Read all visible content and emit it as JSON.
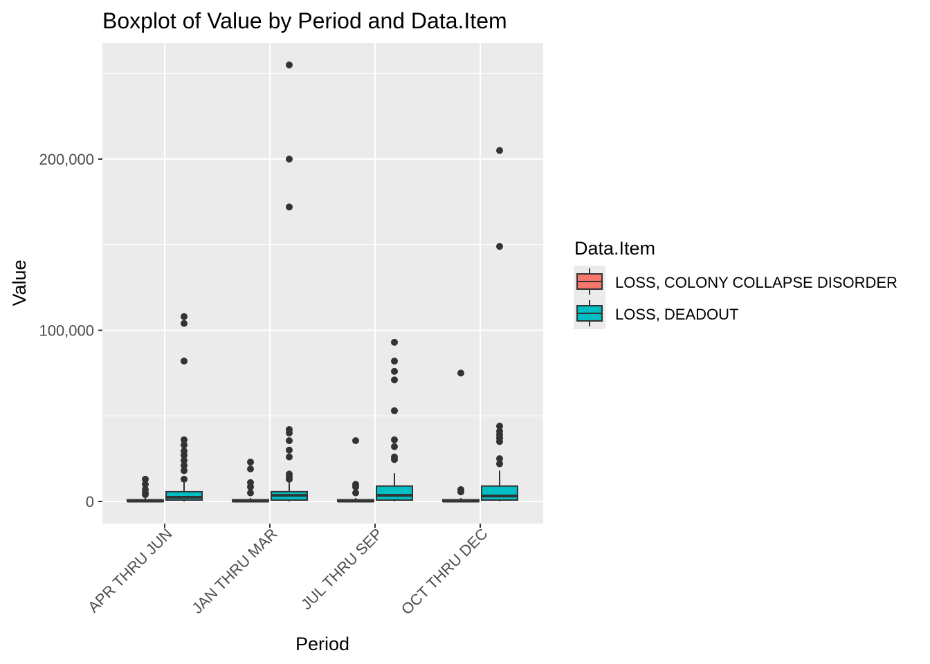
{
  "chart_data": {
    "type": "boxplot",
    "title": "Boxplot of Value by Period and Data.Item",
    "xlabel": "Period",
    "ylabel": "Value",
    "ylim": [
      -12000,
      268000
    ],
    "yticks": [
      0,
      100000,
      200000
    ],
    "ytick_labels": [
      "0",
      "100,000",
      "200,000"
    ],
    "grid": true,
    "categories": [
      "APR THRU JUN",
      "JAN THRU MAR",
      "JUL THRU SEP",
      "OCT THRU DEC"
    ],
    "legend": {
      "title": "Data.Item",
      "placement": "right"
    },
    "series": [
      {
        "name": "LOSS, COLONY COLLAPSE DISORDER",
        "color": "#F8766D",
        "boxes": [
          {
            "min": 0,
            "q1": 0,
            "median": 200,
            "q3": 1000,
            "max": 2000,
            "outliers": [
              4000,
              5000,
              7000,
              10000,
              13000
            ]
          },
          {
            "min": 0,
            "q1": 0,
            "median": 200,
            "q3": 1000,
            "max": 2000,
            "outliers": [
              5000,
              8500,
              11000,
              19000,
              23000
            ]
          },
          {
            "min": 0,
            "q1": 0,
            "median": 200,
            "q3": 1000,
            "max": 2000,
            "outliers": [
              5000,
              8500,
              10000,
              35500
            ]
          },
          {
            "min": 0,
            "q1": 0,
            "median": 200,
            "q3": 1000,
            "max": 2000,
            "outliers": [
              5600,
              6900,
              75000
            ]
          }
        ]
      },
      {
        "name": "LOSS, DEADOUT",
        "color": "#00BFC4",
        "boxes": [
          {
            "min": 0,
            "q1": 800,
            "median": 2400,
            "q3": 5700,
            "max": 11000,
            "outliers": [
              13000,
              18000,
              21000,
              24000,
              27000,
              29500,
              33000,
              36000,
              82000,
              104000,
              108000
            ]
          },
          {
            "min": 0,
            "q1": 800,
            "median": 3600,
            "q3": 5700,
            "max": 11000,
            "outliers": [
              13000,
              14500,
              16000,
              26000,
              30000,
              35500,
              40000,
              42000,
              172000,
              200000,
              255000
            ]
          },
          {
            "min": 0,
            "q1": 800,
            "median": 3600,
            "q3": 9000,
            "max": 16500,
            "outliers": [
              24500,
              26000,
              32000,
              36000,
              53000,
              71000,
              76000,
              82000,
              93000
            ]
          },
          {
            "min": 0,
            "q1": 800,
            "median": 3200,
            "q3": 9000,
            "max": 18000,
            "outliers": [
              22000,
              25000,
              35000,
              37000,
              39000,
              41000,
              44000,
              149000,
              205000
            ]
          }
        ]
      }
    ]
  }
}
